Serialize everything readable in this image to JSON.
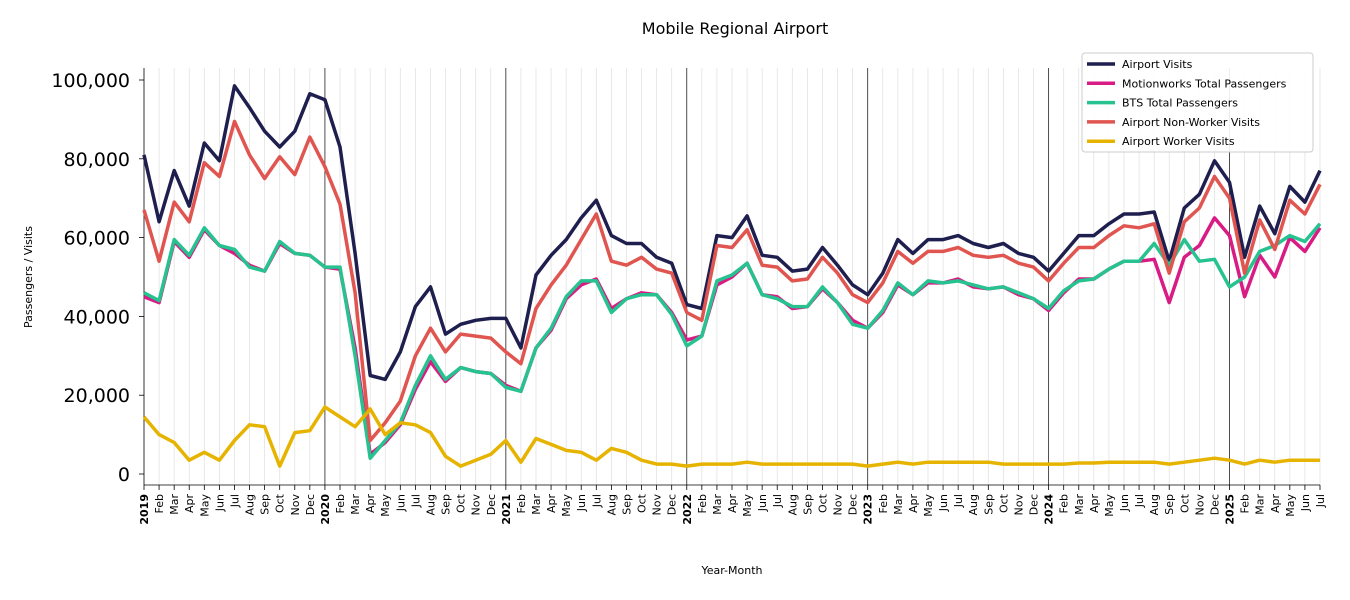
{
  "chart_data": {
    "type": "line",
    "title": "Mobile Regional Airport",
    "xlabel": "Year-Month",
    "ylabel": "Passengers / Visits",
    "ylim": [
      0,
      100000
    ],
    "yticks": [
      0,
      20000,
      40000,
      60000,
      80000,
      100000
    ],
    "ytick_labels": [
      "0",
      "20,000",
      "40,000",
      "60,000",
      "80,000",
      "100,000"
    ],
    "x_start": "2019-01",
    "x_end": "2025-07",
    "years": [
      "2019",
      "2020",
      "2021",
      "2022",
      "2023",
      "2024",
      "2025"
    ],
    "month_labels": [
      "Feb",
      "Mar",
      "Apr",
      "May",
      "Jun",
      "Jul",
      "Aug",
      "Sep",
      "Oct",
      "Nov",
      "Dec"
    ],
    "grid": "vertical monthly gridlines, dark line at each January",
    "legend_position": "top-right",
    "series": [
      {
        "name": "Airport Visits",
        "color": "#1f1f4f",
        "values": [
          81000,
          64000,
          77000,
          68000,
          84000,
          79500,
          98500,
          93000,
          87000,
          83000,
          87000,
          96500,
          95000,
          83000,
          56000,
          25000,
          24000,
          31000,
          42500,
          47500,
          35500,
          38000,
          39000,
          39500,
          39500,
          32000,
          50500,
          55500,
          59500,
          65000,
          69500,
          60500,
          58500,
          58500,
          55000,
          53500,
          43000,
          42000,
          60500,
          60000,
          65500,
          55500,
          55000,
          51500,
          52000,
          57500,
          53000,
          48000,
          45500,
          51000,
          59500,
          56000,
          59500,
          59500,
          60500,
          58500,
          57500,
          58500,
          56000,
          55000,
          51500,
          56000,
          60500,
          60500,
          63500,
          66000,
          66000,
          66500,
          54000,
          67500,
          71000,
          79500,
          74000,
          55000,
          68000,
          61000,
          73000,
          69000,
          77000
        ]
      },
      {
        "name": "Motionworks Total Passengers",
        "color": "#d81b85",
        "values": [
          45000,
          43500,
          59000,
          55000,
          62000,
          58000,
          56000,
          53000,
          51500,
          58500,
          56000,
          55500,
          52500,
          52000,
          32000,
          5000,
          8000,
          12500,
          21500,
          28500,
          23500,
          27000,
          26000,
          25500,
          22500,
          21000,
          32000,
          36500,
          44500,
          48000,
          49500,
          42000,
          44500,
          46000,
          45500,
          41000,
          34000,
          35000,
          48000,
          50000,
          53500,
          45500,
          45000,
          42000,
          42500,
          47000,
          43500,
          39000,
          37000,
          41000,
          48000,
          45500,
          48500,
          48500,
          49500,
          47500,
          47000,
          47500,
          45500,
          44500,
          41500,
          46000,
          49500,
          49500,
          52000,
          54000,
          54000,
          54500,
          43500,
          55000,
          58000,
          65000,
          60500,
          45000,
          55500,
          50000,
          60000,
          56500,
          62500
        ]
      },
      {
        "name": "BTS Total Passengers",
        "color": "#26c28f",
        "values": [
          46000,
          44000,
          59500,
          55500,
          62500,
          58000,
          57000,
          52500,
          51500,
          59000,
          56000,
          55500,
          52500,
          52500,
          30000,
          4000,
          8500,
          13000,
          22500,
          30000,
          24000,
          27000,
          26000,
          25500,
          22000,
          21000,
          32000,
          37000,
          45000,
          49000,
          49000,
          41000,
          44500,
          45500,
          45500,
          40500,
          32500,
          35000,
          49000,
          50500,
          53500,
          45500,
          44500,
          42500,
          42500,
          47500,
          43500,
          38000,
          37000,
          41500,
          48500,
          45500,
          49000,
          48500,
          49000,
          48000,
          47000,
          47500,
          46000,
          44500,
          42000,
          46500,
          49000,
          49500,
          52000,
          54000,
          54000,
          58500,
          53000,
          59500,
          54000,
          54500,
          47500,
          50000,
          56500,
          58000,
          60500,
          59000,
          63500
        ]
      },
      {
        "name": "Airport Non-Worker Visits",
        "color": "#e05550",
        "values": [
          67000,
          54000,
          69000,
          64000,
          79000,
          75500,
          89500,
          81000,
          75000,
          80500,
          76000,
          85500,
          78000,
          68500,
          46000,
          8500,
          13000,
          18500,
          30000,
          37000,
          31000,
          35500,
          35000,
          34500,
          31000,
          28000,
          42000,
          48000,
          53000,
          59500,
          66000,
          54000,
          53000,
          55000,
          52000,
          51000,
          41000,
          39000,
          58000,
          57500,
          62000,
          53000,
          52500,
          49000,
          49500,
          55000,
          51000,
          45500,
          43500,
          48500,
          56500,
          53500,
          56500,
          56500,
          57500,
          55500,
          55000,
          55500,
          53500,
          52500,
          49000,
          53500,
          57500,
          57500,
          60500,
          63000,
          62500,
          63500,
          51000,
          64000,
          67500,
          75500,
          70000,
          51000,
          64500,
          57000,
          69500,
          66000,
          73500
        ]
      },
      {
        "name": "Airport Worker Visits",
        "color": "#e6b400",
        "values": [
          14500,
          10000,
          8000,
          3500,
          5500,
          3500,
          8500,
          12500,
          12000,
          2000,
          10500,
          11000,
          17000,
          14500,
          12000,
          16500,
          10000,
          13000,
          12500,
          10500,
          4500,
          2000,
          3500,
          5000,
          8500,
          3000,
          9000,
          7500,
          6000,
          5500,
          3500,
          6500,
          5500,
          3500,
          2500,
          2500,
          2000,
          2500,
          2500,
          2500,
          3000,
          2500,
          2500,
          2500,
          2500,
          2500,
          2500,
          2500,
          2000,
          2500,
          3000,
          2500,
          3000,
          3000,
          3000,
          3000,
          3000,
          2500,
          2500,
          2500,
          2500,
          2500,
          2800,
          2800,
          3000,
          3000,
          3000,
          3000,
          2500,
          3000,
          3500,
          4000,
          3500,
          2500,
          3500,
          3000,
          3500,
          3500,
          3500
        ]
      }
    ]
  }
}
